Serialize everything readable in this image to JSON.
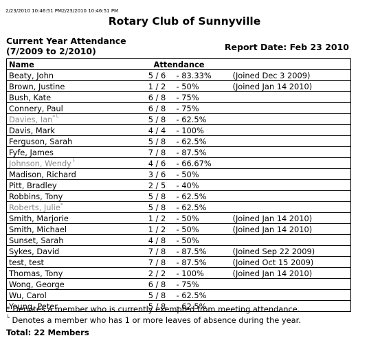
{
  "page": {
    "timestamp": "2/23/2010 10:46:51 PM2/23/2010 10:46:51 PM",
    "club_title": "Rotary Club of Sunnyville",
    "heading_line1": "Current Year Attendance",
    "heading_line2": "(7/2009 to 2/2010)",
    "report_date": "Report Date: Feb 23 2010"
  },
  "table": {
    "headers": {
      "name": "Name",
      "attendance": "Attendance"
    },
    "rows": [
      {
        "name": "Beaty, John",
        "mark": "",
        "inactive": false,
        "ratio": "5 / 6",
        "pct": "- 83.33%",
        "note": "(Joined Dec 3 2009)"
      },
      {
        "name": "Brown, Justine",
        "mark": "",
        "inactive": false,
        "ratio": "1 / 2",
        "pct": "- 50%",
        "note": "(Joined Jan 14 2010)"
      },
      {
        "name": "Bush, Kate",
        "mark": "",
        "inactive": false,
        "ratio": "6 / 8",
        "pct": "- 75%",
        "note": ""
      },
      {
        "name": "Connery, Paul",
        "mark": "",
        "inactive": false,
        "ratio": "6 / 8",
        "pct": "- 75%",
        "note": ""
      },
      {
        "name": "Davies, Ian",
        "mark": "*└",
        "inactive": true,
        "ratio": "5 / 8",
        "pct": "- 62.5%",
        "note": ""
      },
      {
        "name": "Davis, Mark",
        "mark": "",
        "inactive": false,
        "ratio": "4 / 4",
        "pct": "- 100%",
        "note": ""
      },
      {
        "name": "Ferguson, Sarah",
        "mark": "",
        "inactive": false,
        "ratio": "5 / 8",
        "pct": "- 62.5%",
        "note": ""
      },
      {
        "name": "Fyfe, James",
        "mark": "",
        "inactive": false,
        "ratio": "7 / 8",
        "pct": "- 87.5%",
        "note": ""
      },
      {
        "name": "Johnson, Wendy",
        "mark": "└",
        "inactive": true,
        "ratio": "4 / 6",
        "pct": "- 66.67%",
        "note": ""
      },
      {
        "name": "Madison, Richard",
        "mark": "",
        "inactive": false,
        "ratio": "3 / 6",
        "pct": "- 50%",
        "note": ""
      },
      {
        "name": "Pitt, Bradley",
        "mark": "",
        "inactive": false,
        "ratio": "2 / 5",
        "pct": "- 40%",
        "note": ""
      },
      {
        "name": "Robbins, Tony",
        "mark": "",
        "inactive": false,
        "ratio": "5 / 8",
        "pct": "- 62.5%",
        "note": ""
      },
      {
        "name": "Roberts, Julie",
        "mark": "*",
        "inactive": true,
        "ratio": "5 / 8",
        "pct": "- 62.5%",
        "note": ""
      },
      {
        "name": "Smith, Marjorie",
        "mark": "",
        "inactive": false,
        "ratio": "1 / 2",
        "pct": "- 50%",
        "note": "(Joined Jan 14 2010)"
      },
      {
        "name": "Smith, Michael",
        "mark": "",
        "inactive": false,
        "ratio": "1 / 2",
        "pct": "- 50%",
        "note": "(Joined Jan 14 2010)"
      },
      {
        "name": "Sunset, Sarah",
        "mark": "",
        "inactive": false,
        "ratio": "4 / 8",
        "pct": "- 50%",
        "note": ""
      },
      {
        "name": "Sykes, David",
        "mark": "",
        "inactive": false,
        "ratio": "7 / 8",
        "pct": "- 87.5%",
        "note": "(Joined Sep 22 2009)"
      },
      {
        "name": "test, test",
        "mark": "",
        "inactive": false,
        "ratio": "7 / 8",
        "pct": "- 87.5%",
        "note": "(Joined Oct 15 2009)"
      },
      {
        "name": "Thomas, Tony",
        "mark": "",
        "inactive": false,
        "ratio": "2 / 2",
        "pct": "- 100%",
        "note": "(Joined Jan 14 2010)"
      },
      {
        "name": "Wong, George",
        "mark": "",
        "inactive": false,
        "ratio": "6 / 8",
        "pct": "- 75%",
        "note": ""
      },
      {
        "name": "Wu, Carol",
        "mark": "",
        "inactive": false,
        "ratio": "5 / 8",
        "pct": "- 62.5%",
        "note": ""
      },
      {
        "name": "Young, Peter",
        "mark": "",
        "inactive": false,
        "ratio": "5 / 8",
        "pct": "- 62.5%",
        "note": ""
      }
    ]
  },
  "footer": {
    "footnote_exempt": "* Denotes a member who is currently exempted from meeting attendance.",
    "footnote_leave_mark": "└",
    "footnote_leave": " Denotes a member who has 1 or more leaves of absence during the year.",
    "total": "Total: 22 Members"
  },
  "colors": {
    "text": "#000000",
    "inactive_text": "#8a8a8a",
    "border": "#000000"
  }
}
